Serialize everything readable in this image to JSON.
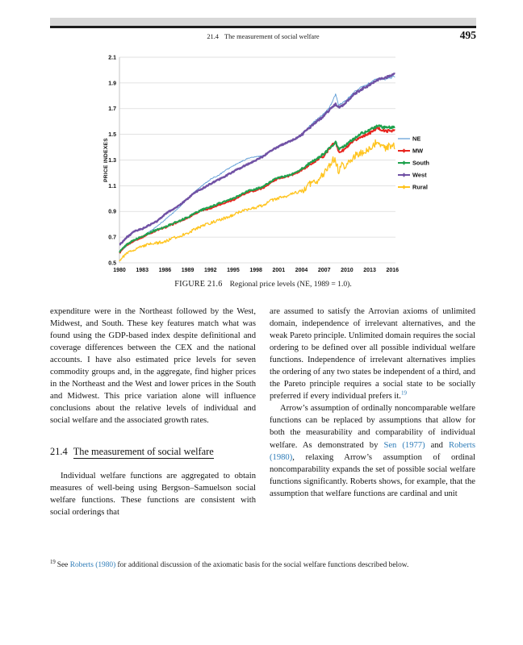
{
  "header": {
    "section_number": "21.4",
    "section_title": "The measurement of social welfare",
    "page_number": "495"
  },
  "figure": {
    "caption_label": "FIGURE 21.6",
    "caption_text": "Regional price levels (NE, 1989 = 1.0)."
  },
  "chart_data": {
    "type": "line",
    "title": "",
    "ylabel": "PRICE INDEXES",
    "xlabel": "",
    "ylim": [
      0.5,
      2.1
    ],
    "xlim": [
      1980,
      2016.4
    ],
    "yticks": [
      "0.5",
      "0.7",
      "0.9",
      "1.1",
      "1.3",
      "1.5",
      "1.7",
      "1.9",
      "2.1"
    ],
    "xticks": [
      1980,
      1983,
      1986,
      1989,
      1992,
      1995,
      1998,
      2001,
      2004,
      2007,
      2010,
      2013,
      2016
    ],
    "grid": "horizontal",
    "legend_position": "right",
    "grid_color": "#d9d9d9",
    "axis_color": "#c0c0c0",
    "series": [
      {
        "name": "NE",
        "color": "#5B9BD5",
        "width": 0.9,
        "noise": 0.004,
        "z": 0,
        "anchors": [
          [
            1980,
            0.58
          ],
          [
            1981,
            0.635
          ],
          [
            1982,
            0.67
          ],
          [
            1983,
            0.7
          ],
          [
            1984,
            0.745
          ],
          [
            1985,
            0.785
          ],
          [
            1986,
            0.835
          ],
          [
            1987,
            0.885
          ],
          [
            1988,
            0.94
          ],
          [
            1989,
            1.0
          ],
          [
            1990,
            1.06
          ],
          [
            1991,
            1.105
          ],
          [
            1992,
            1.15
          ],
          [
            1993,
            1.18
          ],
          [
            1994,
            1.22
          ],
          [
            1995,
            1.255
          ],
          [
            1996,
            1.285
          ],
          [
            1997,
            1.315
          ],
          [
            1998,
            1.325
          ],
          [
            1999,
            1.335
          ],
          [
            2000,
            1.375
          ],
          [
            2001,
            1.41
          ],
          [
            2002,
            1.43
          ],
          [
            2003,
            1.46
          ],
          [
            2004,
            1.5
          ],
          [
            2005,
            1.56
          ],
          [
            2006,
            1.615
          ],
          [
            2007,
            1.66
          ],
          [
            2007.8,
            1.72
          ],
          [
            2008.5,
            1.81
          ],
          [
            2008.9,
            1.73
          ],
          [
            2009.5,
            1.75
          ],
          [
            2010,
            1.77
          ],
          [
            2011,
            1.83
          ],
          [
            2012,
            1.87
          ],
          [
            2013,
            1.9
          ],
          [
            2014,
            1.935
          ],
          [
            2015,
            1.925
          ],
          [
            2016,
            1.945
          ],
          [
            2016.4,
            1.95
          ]
        ]
      },
      {
        "name": "MW",
        "color": "#E8251F",
        "width": 2.0,
        "noise": 0.006,
        "z": 1,
        "anchors": [
          [
            1980,
            0.578
          ],
          [
            1981,
            0.64
          ],
          [
            1982,
            0.675
          ],
          [
            1983,
            0.7
          ],
          [
            1984,
            0.73
          ],
          [
            1985,
            0.755
          ],
          [
            1986,
            0.775
          ],
          [
            1987,
            0.8
          ],
          [
            1988,
            0.825
          ],
          [
            1989,
            0.85
          ],
          [
            1990,
            0.885
          ],
          [
            1991,
            0.91
          ],
          [
            1992,
            0.925
          ],
          [
            1993,
            0.95
          ],
          [
            1994,
            0.97
          ],
          [
            1995,
            0.99
          ],
          [
            1996,
            1.02
          ],
          [
            1997,
            1.05
          ],
          [
            1998,
            1.065
          ],
          [
            1999,
            1.085
          ],
          [
            2000,
            1.125
          ],
          [
            2001,
            1.16
          ],
          [
            2002,
            1.17
          ],
          [
            2003,
            1.19
          ],
          [
            2004,
            1.22
          ],
          [
            2005,
            1.26
          ],
          [
            2006,
            1.3
          ],
          [
            2007,
            1.335
          ],
          [
            2008.5,
            1.45
          ],
          [
            2008.9,
            1.36
          ],
          [
            2009.5,
            1.375
          ],
          [
            2010,
            1.4
          ],
          [
            2011,
            1.45
          ],
          [
            2012,
            1.485
          ],
          [
            2013,
            1.51
          ],
          [
            2014,
            1.55
          ],
          [
            2015,
            1.525
          ],
          [
            2016,
            1.53
          ],
          [
            2016.4,
            1.53
          ]
        ]
      },
      {
        "name": "South",
        "color": "#1FA24E",
        "width": 2.0,
        "noise": 0.006,
        "z": 2,
        "anchors": [
          [
            1980,
            0.585
          ],
          [
            1981,
            0.645
          ],
          [
            1982,
            0.68
          ],
          [
            1983,
            0.705
          ],
          [
            1984,
            0.735
          ],
          [
            1985,
            0.76
          ],
          [
            1986,
            0.78
          ],
          [
            1987,
            0.805
          ],
          [
            1988,
            0.83
          ],
          [
            1989,
            0.855
          ],
          [
            1990,
            0.89
          ],
          [
            1991,
            0.915
          ],
          [
            1992,
            0.935
          ],
          [
            1993,
            0.96
          ],
          [
            1994,
            0.98
          ],
          [
            1995,
            1.0
          ],
          [
            1996,
            1.03
          ],
          [
            1997,
            1.06
          ],
          [
            1998,
            1.075
          ],
          [
            1999,
            1.095
          ],
          [
            2000,
            1.135
          ],
          [
            2001,
            1.165
          ],
          [
            2002,
            1.175
          ],
          [
            2003,
            1.195
          ],
          [
            2004,
            1.23
          ],
          [
            2005,
            1.27
          ],
          [
            2006,
            1.31
          ],
          [
            2007,
            1.35
          ],
          [
            2008.5,
            1.44
          ],
          [
            2008.9,
            1.385
          ],
          [
            2009.5,
            1.4
          ],
          [
            2010,
            1.425
          ],
          [
            2011,
            1.47
          ],
          [
            2012,
            1.51
          ],
          [
            2013,
            1.535
          ],
          [
            2014,
            1.565
          ],
          [
            2015,
            1.555
          ],
          [
            2016,
            1.555
          ],
          [
            2016.4,
            1.55
          ]
        ]
      },
      {
        "name": "West",
        "color": "#7152A5",
        "width": 2.4,
        "noise": 0.005,
        "z": 4,
        "anchors": [
          [
            1980,
            0.64
          ],
          [
            1981,
            0.7
          ],
          [
            1982,
            0.745
          ],
          [
            1983,
            0.765
          ],
          [
            1984,
            0.795
          ],
          [
            1985,
            0.825
          ],
          [
            1986,
            0.88
          ],
          [
            1987,
            0.915
          ],
          [
            1988,
            0.95
          ],
          [
            1989,
            1.0
          ],
          [
            1990,
            1.05
          ],
          [
            1991,
            1.08
          ],
          [
            1992,
            1.115
          ],
          [
            1993,
            1.145
          ],
          [
            1994,
            1.175
          ],
          [
            1995,
            1.21
          ],
          [
            1996,
            1.24
          ],
          [
            1997,
            1.27
          ],
          [
            1998,
            1.3
          ],
          [
            1999,
            1.33
          ],
          [
            2000,
            1.375
          ],
          [
            2001,
            1.405
          ],
          [
            2002,
            1.435
          ],
          [
            2003,
            1.46
          ],
          [
            2004,
            1.495
          ],
          [
            2005,
            1.545
          ],
          [
            2006,
            1.6
          ],
          [
            2007,
            1.645
          ],
          [
            2007.8,
            1.7
          ],
          [
            2008.5,
            1.735
          ],
          [
            2008.9,
            1.71
          ],
          [
            2009.5,
            1.73
          ],
          [
            2010,
            1.755
          ],
          [
            2011,
            1.815
          ],
          [
            2012,
            1.855
          ],
          [
            2013,
            1.885
          ],
          [
            2014,
            1.925
          ],
          [
            2015,
            1.94
          ],
          [
            2016,
            1.965
          ],
          [
            2016.4,
            1.97
          ]
        ]
      },
      {
        "name": "Rural",
        "color": "#FFC41E",
        "width": 1.3,
        "noise": 0.011,
        "z": 3,
        "anchors": [
          [
            1980,
            0.52
          ],
          [
            1981,
            0.575
          ],
          [
            1982,
            0.605
          ],
          [
            1983,
            0.63
          ],
          [
            1984,
            0.645
          ],
          [
            1985,
            0.655
          ],
          [
            1986,
            0.665
          ],
          [
            1987,
            0.69
          ],
          [
            1988,
            0.71
          ],
          [
            1989,
            0.73
          ],
          [
            1990,
            0.765
          ],
          [
            1991,
            0.79
          ],
          [
            1992,
            0.81
          ],
          [
            1993,
            0.83
          ],
          [
            1994,
            0.85
          ],
          [
            1995,
            0.87
          ],
          [
            1996,
            0.9
          ],
          [
            1997,
            0.92
          ],
          [
            1998,
            0.93
          ],
          [
            1999,
            0.95
          ],
          [
            2000,
            0.985
          ],
          [
            2001,
            1.005
          ],
          [
            2002,
            1.02
          ],
          [
            2003,
            1.04
          ],
          [
            2004,
            1.06
          ],
          [
            2005,
            1.11
          ],
          [
            2006,
            1.14
          ],
          [
            2007,
            1.19
          ],
          [
            2008.4,
            1.32
          ],
          [
            2008.9,
            1.21
          ],
          [
            2009.3,
            1.28
          ],
          [
            2009.7,
            1.22
          ],
          [
            2010,
            1.28
          ],
          [
            2011,
            1.33
          ],
          [
            2012,
            1.36
          ],
          [
            2013,
            1.385
          ],
          [
            2014,
            1.45
          ],
          [
            2015,
            1.395
          ],
          [
            2016,
            1.42
          ],
          [
            2016.4,
            1.41
          ]
        ]
      }
    ]
  },
  "body": {
    "columns": [
      {
        "blocks": [
          {
            "type": "para",
            "indent": false,
            "segments": [
              {
                "t": "expenditure were in the Northeast followed by the West, Midwest, and South. These key features match what was found using the GDP-based index despite definitional and coverage differences between the CEX and the national accounts. I have also estimated price levels for seven commodity groups and, in the aggregate, find higher prices in the Northeast and the West and lower prices in the South and Midwest. This price variation alone will influence conclusions about the relative levels of individual and social welfare and the associated growth rates."
              }
            ]
          },
          {
            "type": "heading",
            "number": "21.4",
            "title": "The measurement of social welfare"
          },
          {
            "type": "para",
            "indent": true,
            "segments": [
              {
                "t": "Individual welfare functions are aggregated to obtain measures of well-being using Bergson–Samuelson social welfare functions. These functions are consistent with social orderings that"
              }
            ]
          }
        ]
      },
      {
        "blocks": [
          {
            "type": "para",
            "indent": false,
            "segments": [
              {
                "t": "are assumed to satisfy the Arrovian axioms of unlimited domain, independence of irrelevant alternatives, and the weak Pareto principle. Unlimited domain requires the social ordering to be defined over all possible individual welfare functions. Independence of irrelevant alternatives implies the ordering of any two states be independent of a third, and the Pareto principle requires a social state to be socially preferred if every individual prefers it."
              },
              {
                "t": "19",
                "sup": true,
                "link": true
              }
            ]
          },
          {
            "type": "para",
            "indent": true,
            "segments": [
              {
                "t": "Arrow’s assumption of ordinally noncomparable welfare functions can be replaced by assumptions that allow for both the measurability and comparability of individual welfare. As demonstrated by "
              },
              {
                "t": "Sen (1977)",
                "link": true
              },
              {
                "t": " and "
              },
              {
                "t": "Roberts (1980)",
                "link": true
              },
              {
                "t": ", relaxing Arrow’s assumption of ordinal noncomparability expands the set of possible social welfare functions significantly. Roberts shows, for example, that the assumption that welfare functions are cardinal and unit"
              }
            ]
          }
        ]
      }
    ]
  },
  "footnote": {
    "marker": "19",
    "segments": [
      {
        "t": "See "
      },
      {
        "t": "Roberts (1980)",
        "link": true
      },
      {
        "t": " for additional discussion of the axiomatic basis for the social welfare functions described below."
      }
    ]
  },
  "colors": {
    "link": "#2e7cb8",
    "topbar": "#d8d8d8"
  }
}
